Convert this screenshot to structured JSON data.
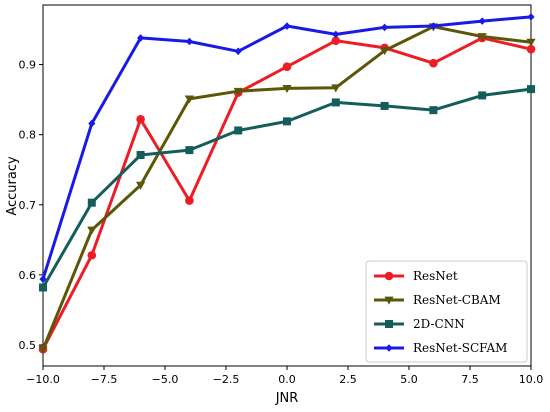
{
  "chart_data": {
    "type": "line",
    "xlabel": "JNR",
    "ylabel": "Accuracy",
    "xlim": [
      -10.0,
      10.0
    ],
    "ylim": [
      0.47,
      0.985
    ],
    "xticks": [
      -10.0,
      -7.5,
      -5.0,
      -2.5,
      0.0,
      2.5,
      5.0,
      7.5,
      10.0
    ],
    "xtick_labels": [
      "−10.0",
      "−7.5",
      "−5.0",
      "−2.5",
      "0.0",
      "2.5",
      "5.0",
      "7.5",
      "10.0"
    ],
    "yticks": [
      0.5,
      0.6,
      0.7,
      0.8,
      0.9
    ],
    "ytick_labels": [
      "0.5",
      "0.6",
      "0.7",
      "0.8",
      "0.9"
    ],
    "grid": false,
    "legend_position": "lower-right",
    "x": [
      -10,
      -8,
      -6,
      -4,
      -2,
      0,
      2,
      4,
      6,
      8,
      10
    ],
    "series": [
      {
        "name": "ResNet",
        "color": "#ee1c25",
        "marker": "circle",
        "values": [
          0.494,
          0.628,
          0.822,
          0.706,
          0.86,
          0.897,
          0.934,
          0.924,
          0.902,
          0.938,
          0.922
        ]
      },
      {
        "name": "ResNet-CBAM",
        "color": "#5b5608",
        "marker": "triangle-down",
        "values": [
          0.494,
          0.664,
          0.728,
          0.851,
          0.862,
          0.866,
          0.867,
          0.92,
          0.954,
          0.94,
          0.932
        ]
      },
      {
        "name": "2D-CNN",
        "color": "#135e5a",
        "marker": "square",
        "values": [
          0.582,
          0.703,
          0.771,
          0.778,
          0.806,
          0.819,
          0.846,
          0.841,
          0.835,
          0.856,
          0.865
        ]
      },
      {
        "name": "ResNet-SCFAM",
        "color": "#1a1ae6",
        "marker": "diamond",
        "values": [
          0.594,
          0.816,
          0.938,
          0.933,
          0.919,
          0.955,
          0.943,
          0.953,
          0.955,
          0.962,
          0.968
        ]
      }
    ]
  }
}
